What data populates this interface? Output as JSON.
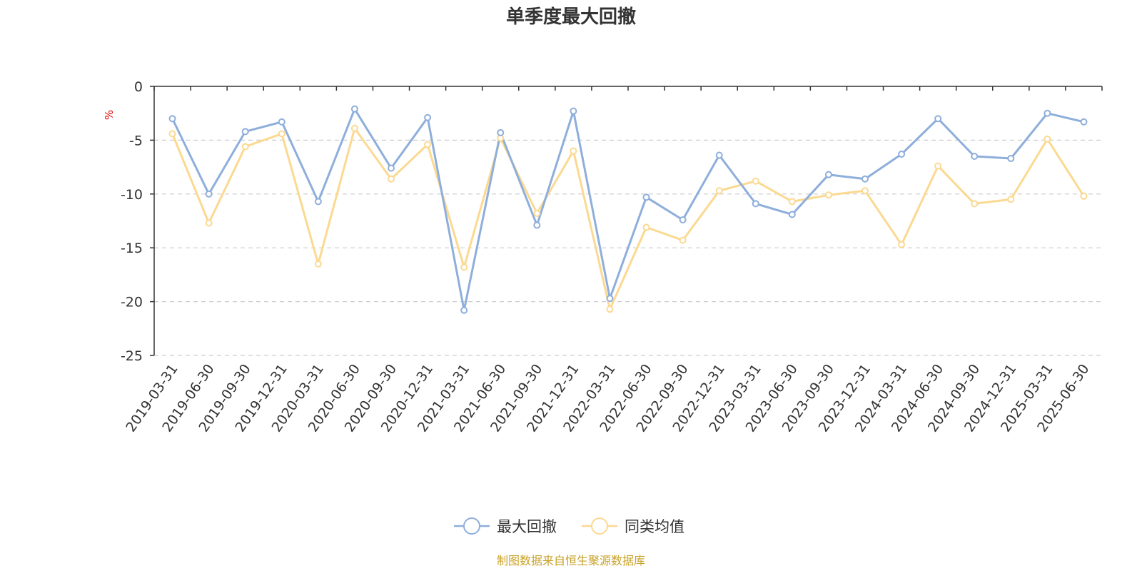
{
  "chart_data": {
    "type": "line",
    "title": "单季度最大回撤",
    "ylabel": "%",
    "ylim": [
      -25,
      0
    ],
    "yticks": [
      0,
      -5,
      -10,
      -15,
      -20,
      -25
    ],
    "grid": true,
    "legend_position": "bottom",
    "categories": [
      "2019-03-31",
      "2019-06-30",
      "2019-09-30",
      "2019-12-31",
      "2020-03-31",
      "2020-06-30",
      "2020-09-30",
      "2020-12-31",
      "2021-03-31",
      "2021-06-30",
      "2021-09-30",
      "2021-12-31",
      "2022-03-31",
      "2022-06-30",
      "2022-09-30",
      "2022-12-31",
      "2023-03-31",
      "2023-06-30",
      "2023-09-30",
      "2023-12-31",
      "2024-03-31",
      "2024-06-30",
      "2024-09-30",
      "2024-12-31",
      "2025-03-31",
      "2025-06-30"
    ],
    "series": [
      {
        "name": "最大回撤",
        "color": "#8eaedb",
        "values": [
          -3.0,
          -10.0,
          -4.2,
          -3.3,
          -10.7,
          -2.1,
          -7.6,
          -2.9,
          -20.8,
          -4.3,
          -12.9,
          -2.3,
          -19.7,
          -10.3,
          -12.4,
          -6.4,
          -10.9,
          -11.9,
          -8.2,
          -8.6,
          -6.3,
          -3.0,
          -6.5,
          -6.7,
          -2.5,
          -3.3
        ]
      },
      {
        "name": "同类均值",
        "color": "#fbd991",
        "values": [
          -4.4,
          -12.7,
          -5.6,
          -4.4,
          -16.5,
          -3.9,
          -8.6,
          -5.4,
          -16.8,
          -4.8,
          -11.8,
          -6.0,
          -20.7,
          -13.1,
          -14.3,
          -9.7,
          -8.8,
          -10.7,
          -10.1,
          -9.7,
          -14.7,
          -7.4,
          -10.9,
          -10.5,
          -4.9,
          -10.2
        ]
      }
    ]
  },
  "footer": {
    "source": "制图数据来自恒生聚源数据库"
  }
}
